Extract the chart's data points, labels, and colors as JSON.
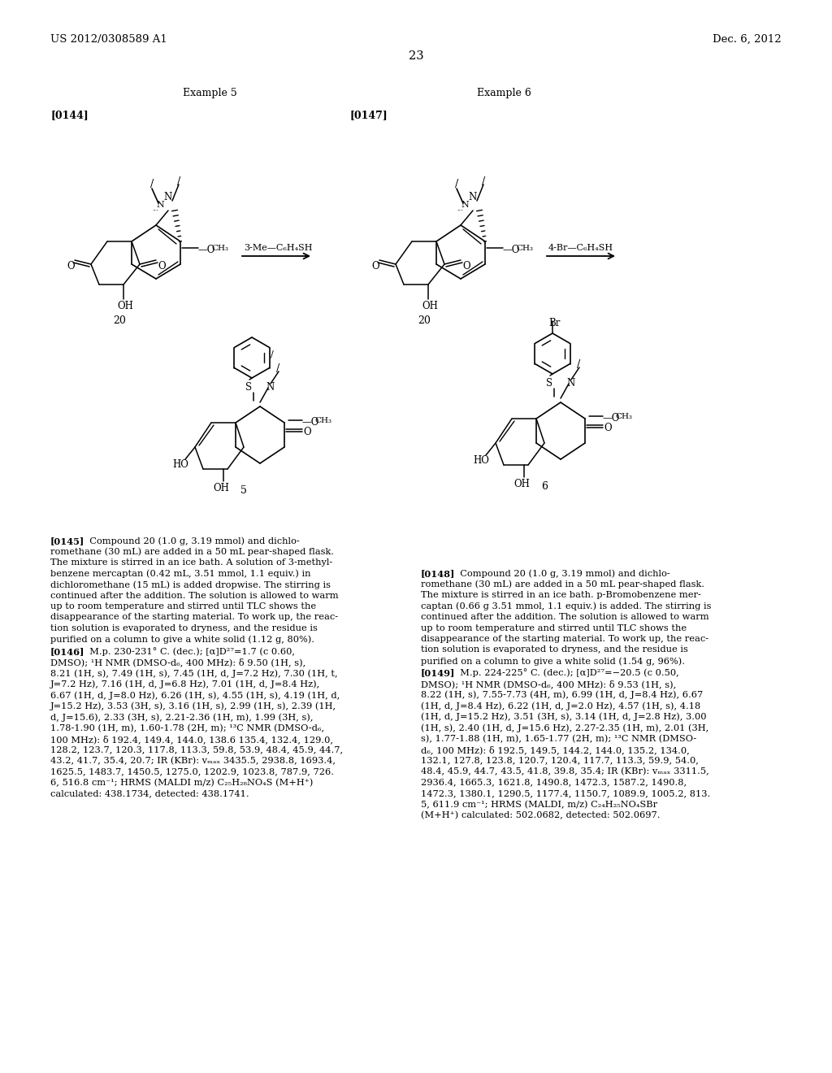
{
  "page_header_left": "US 2012/0308589 A1",
  "page_header_right": "Dec. 6, 2012",
  "page_number": "23",
  "example5_title": "Example 5",
  "example6_title": "Example 6",
  "para_0144": "[0144]",
  "para_0147": "[0147]",
  "reagent1": "3-Me—C₆H₄SH",
  "reagent2": "4-Br—C₆H₄SH",
  "compound_num_20a": "20",
  "compound_num_20b": "20",
  "compound_num_5": "5",
  "compound_num_6": "6",
  "para_0145_bold": "[0145]",
  "para_0145_lines": [
    "  Compound 20 (1.0 g, 3.19 mmol) and dichlo-",
    "romethane (30 mL) are added in a 50 mL pear-shaped flask.",
    "The mixture is stirred in an ice bath. A solution of 3-methyl-",
    "benzene mercaptan (0.42 mL, 3.51 mmol, 1.1 equiv.) in",
    "dichloromethane (15 mL) is added dropwise. The stirring is",
    "continued after the addition. The solution is allowed to warm",
    "up to room temperature and stirred until TLC shows the",
    "disappearance of the starting material. To work up, the reac-",
    "tion solution is evaporated to dryness, and the residue is",
    "purified on a column to give a white solid (1.12 g, 80%)."
  ],
  "para_0146_bold": "[0146]",
  "para_0146_lines": [
    "  M.p. 230-231° C. (dec.); [α]D²⁷=1.7 (c 0.60,",
    "DMSO); ¹H NMR (DMSO-d₆, 400 MHz): δ 9.50 (1H, s),",
    "8.21 (1H, s), 7.49 (1H, s), 7.45 (1H, d, J=7.2 Hz), 7.30 (1H, t,",
    "J=7.2 Hz), 7.16 (1H, d, J=6.8 Hz), 7.01 (1H, d, J=8.4 Hz),",
    "6.67 (1H, d, J=8.0 Hz), 6.26 (1H, s), 4.55 (1H, s), 4.19 (1H, d,",
    "J=15.2 Hz), 3.53 (3H, s), 3.16 (1H, s), 2.99 (1H, s), 2.39 (1H,",
    "d, J=15.6), 2.33 (3H, s), 2.21-2.36 (1H, m), 1.99 (3H, s),",
    "1.78-1.90 (1H, m), 1.60-1.78 (2H, m); ¹³C NMR (DMSO-d₆,",
    "100 MHz): δ 192.4, 149.4, 144.0, 138.6 135.4, 132.4, 129.0,",
    "128.2, 123.7, 120.3, 117.8, 113.3, 59.8, 53.9, 48.4, 45.9, 44.7,",
    "43.2, 41.7, 35.4, 20.7; IR (KBr): vₘₐₓ 3435.5, 2938.8, 1693.4,",
    "1625.5, 1483.7, 1450.5, 1275.0, 1202.9, 1023.8, 787.9, 726.",
    "6, 516.8 cm⁻¹; HRMS (MALDI m/z) C₂₅H₂₈NO₄S (M+H⁺)",
    "calculated: 438.1734, detected: 438.1741."
  ],
  "para_0148_bold": "[0148]",
  "para_0148_lines": [
    "  Compound 20 (1.0 g, 3.19 mmol) and dichlo-",
    "romethane (30 mL) are added in a 50 mL pear-shaped flask.",
    "The mixture is stirred in an ice bath. p-Bromobenzene mer-",
    "captan (0.66 g 3.51 mmol, 1.1 equiv.) is added. The stirring is",
    "continued after the addition. The solution is allowed to warm",
    "up to room temperature and stirred until TLC shows the",
    "disappearance of the starting material. To work up, the reac-",
    "tion solution is evaporated to dryness, and the residue is",
    "purified on a column to give a white solid (1.54 g, 96%)."
  ],
  "para_0149_bold": "[0149]",
  "para_0149_lines": [
    "  M.p. 224-225° C. (dec.); [α]D²⁷=−20.5 (c 0.50,",
    "DMSO); ¹H NMR (DMSO-d₆, 400 MHz): δ 9.53 (1H, s),",
    "8.22 (1H, s), 7.55-7.73 (4H, m), 6.99 (1H, d, J=8.4 Hz), 6.67",
    "(1H, d, J=8.4 Hz), 6.22 (1H, d, J=2.0 Hz), 4.57 (1H, s), 4.18",
    "(1H, d, J=15.2 Hz), 3.51 (3H, s), 3.14 (1H, d, J=2.8 Hz), 3.00",
    "(1H, s), 2.40 (1H, d, J=15.6 Hz), 2.27-2.35 (1H, m), 2.01 (3H,",
    "s), 1.77-1.88 (1H, m), 1.65-1.77 (2H, m); ¹³C NMR (DMSO-",
    "d₆, 100 MHz): δ 192.5, 149.5, 144.2, 144.0, 135.2, 134.0,",
    "132.1, 127.8, 123.8, 120.7, 120.4, 117.7, 113.3, 59.9, 54.0,",
    "48.4, 45.9, 44.7, 43.5, 41.8, 39.8, 35.4; IR (KBr): vₘₐₓ 3311.5,",
    "2936.4, 1665.3, 1621.8, 1490.8, 1472.3, 1587.2, 1490.8,",
    "1472.3, 1380.1, 1290.5, 1177.4, 1150.7, 1089.9, 1005.2, 813.",
    "5, 611.9 cm⁻¹; HRMS (MALDI, m/z) C₂₄H₂₅NO₄SBr",
    "(M+H⁺) calculated: 502.0682, detected: 502.0697."
  ],
  "bg_color": "#ffffff"
}
